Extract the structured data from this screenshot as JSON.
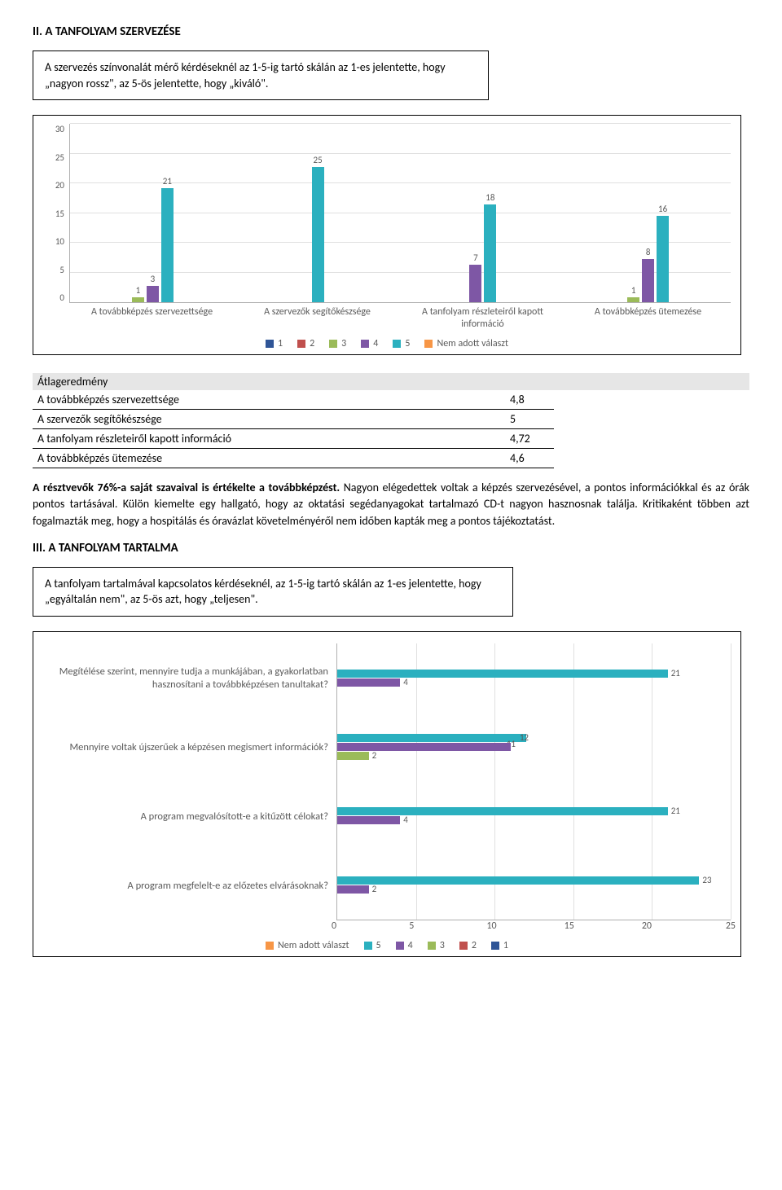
{
  "section2": {
    "title": "II.  A TANFOLYAM SZERVEZÉSE",
    "box_text": "A szervezés színvonalát mérő kérdéseknél az 1-5-ig tartó skálán az 1-es jelentette, hogy „nagyon rossz\", az 5-ös jelentette, hogy „kiváló\"."
  },
  "chart1": {
    "type": "bar",
    "ymax": 30,
    "ytick_step": 5,
    "yticks": [
      "30",
      "25",
      "20",
      "15",
      "10",
      "5",
      "0"
    ],
    "grid_color": "#e0e0e0",
    "axis_color": "#b0b0b0",
    "label_color": "#595959",
    "series": [
      {
        "name": "1",
        "color": "#2f5597"
      },
      {
        "name": "2",
        "color": "#c0504d"
      },
      {
        "name": "3",
        "color": "#9bbb59"
      },
      {
        "name": "4",
        "color": "#7e57a5"
      },
      {
        "name": "5",
        "color": "#2bb0bf"
      },
      {
        "name": "Nem adott választ",
        "color": "#f79646"
      }
    ],
    "categories": [
      {
        "label": "A továbbképzés szervezettsége",
        "values": [
          0,
          0,
          1,
          3,
          21,
          0
        ]
      },
      {
        "label": "A szervezők segítőkészsége",
        "values": [
          0,
          0,
          0,
          0,
          25,
          0
        ]
      },
      {
        "label": "A tanfolyam részleteiről kapott információ",
        "values": [
          0,
          0,
          0,
          7,
          18,
          0
        ]
      },
      {
        "label": "A továbbképzés ütemezése",
        "values": [
          0,
          0,
          1,
          8,
          16,
          0
        ]
      }
    ]
  },
  "averages": {
    "heading": "Átlageredmény",
    "rows": [
      {
        "label": "A továbbképzés szervezettsége",
        "value": "4,8"
      },
      {
        "label": "A szervezők segítőkészsége",
        "value": "5"
      },
      {
        "label": "A tanfolyam részleteiről kapott információ",
        "value": "4,72"
      },
      {
        "label": "A továbbképzés ütemezése",
        "value": "4,6"
      }
    ]
  },
  "para1_lead": "A résztvevők 76%-a saját szavaival is értékelte a továbbképzést.",
  "para1_rest": "Nagyon elégedettek voltak a képzés szervezésével, a pontos információkkal és az órák pontos tartásával. Külön kiemelte egy hallgató, hogy az oktatási segédanyagokat tartalmazó CD-t nagyon hasznosnak találja. Kritikaként többen azt fogalmazták meg, hogy a hospitálás és óravázlat követelményéről nem időben kapták meg a pontos tájékoztatást.",
  "section3": {
    "title": "III. A TANFOLYAM TARTALMA",
    "box_text": "A tanfolyam tartalmával kapcsolatos kérdéseknél, az 1-5-ig tartó skálán az 1-es jelentette, hogy „egyáltalán nem\", az 5-ös azt, hogy „teljesen\"."
  },
  "chart2": {
    "type": "bar-horizontal",
    "xmax": 25,
    "xtick_step": 5,
    "xticks": [
      "0",
      "5",
      "10",
      "15",
      "20",
      "25"
    ],
    "grid_color": "#e0e0e0",
    "axis_color": "#b0b0b0",
    "label_color": "#595959",
    "series": [
      {
        "name": "Nem adott választ",
        "color": "#f79646"
      },
      {
        "name": "5",
        "color": "#2bb0bf"
      },
      {
        "name": "4",
        "color": "#7e57a5"
      },
      {
        "name": "3",
        "color": "#9bbb59"
      },
      {
        "name": "2",
        "color": "#c0504d"
      },
      {
        "name": "1",
        "color": "#2f5597"
      }
    ],
    "rows": [
      {
        "label": "Megítélése szerint, mennyire tudja a munkájában, a gyakorlatban hasznosítani a továbbképzésen tanultakat?",
        "bars": [
          {
            "s": "5",
            "v": 21
          },
          {
            "s": "4",
            "v": 4
          }
        ]
      },
      {
        "label": "Mennyire voltak újszerűek a képzésen megismert információk?",
        "bars": [
          {
            "s": "5",
            "v": 12,
            "lblshift": -12,
            "extra_label": "11"
          },
          {
            "s": "4",
            "v": 11,
            "nolabel": true
          },
          {
            "s": "3",
            "v": 2
          }
        ]
      },
      {
        "label": "A program megvalósított-e a kitűzött célokat?",
        "bars": [
          {
            "s": "5",
            "v": 21
          },
          {
            "s": "4",
            "v": 4
          }
        ]
      },
      {
        "label": "A program megfelelt-e az előzetes elvárásoknak?",
        "bars": [
          {
            "s": "5",
            "v": 23
          },
          {
            "s": "4",
            "v": 2
          }
        ]
      }
    ]
  }
}
